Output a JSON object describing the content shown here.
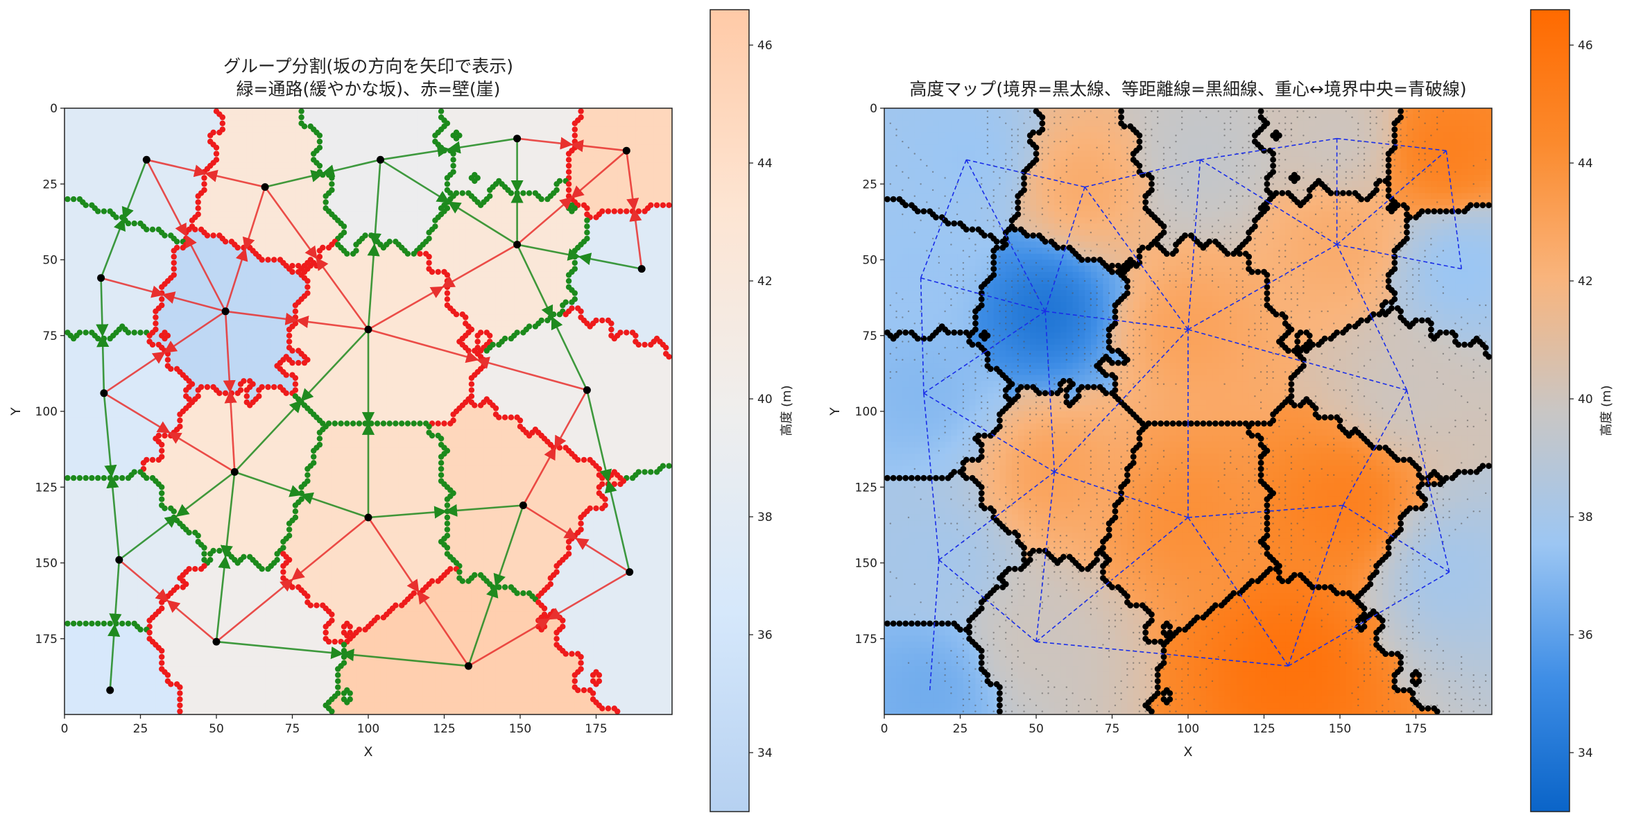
{
  "chart_data": [
    {
      "type": "heatmap",
      "title_line1": "グループ分割(坂の方向を矢印で表示)",
      "title_line2": "緑=通路(緩やかな坂)、赤=壁(崖)",
      "xlabel": "X",
      "ylabel": "Y",
      "xlim": [
        0,
        200
      ],
      "ylim": [
        200,
        0
      ],
      "xticks": [
        0,
        25,
        50,
        75,
        100,
        125,
        150,
        175
      ],
      "yticks": [
        0,
        25,
        50,
        75,
        100,
        125,
        150,
        175
      ],
      "colorbar": {
        "label": "高度 (m)",
        "range": [
          33,
          46.6
        ],
        "ticks": [
          34,
          36,
          38,
          40,
          42,
          44,
          46
        ],
        "colors": [
          "#b6d1f1",
          "#d6e8fb",
          "#efeeed",
          "#fde5d3",
          "#ffcaa7"
        ]
      },
      "regions": [
        {
          "centroid": [
            27,
            17
          ],
          "elevation": 37.5
        },
        {
          "centroid": [
            66,
            26
          ],
          "elevation": 42.5
        },
        {
          "centroid": [
            104,
            17
          ],
          "elevation": 39.5
        },
        {
          "centroid": [
            149,
            10
          ],
          "elevation": 40.0
        },
        {
          "centroid": [
            185,
            14
          ],
          "elevation": 45.0
        },
        {
          "centroid": [
            149,
            45
          ],
          "elevation": 42.5
        },
        {
          "centroid": [
            12,
            56
          ],
          "elevation": 37.5
        },
        {
          "centroid": [
            190,
            53
          ],
          "elevation": 37.5
        },
        {
          "centroid": [
            53,
            67
          ],
          "elevation": 34.0
        },
        {
          "centroid": [
            100,
            73
          ],
          "elevation": 43.0
        },
        {
          "centroid": [
            13,
            94
          ],
          "elevation": 37.0
        },
        {
          "centroid": [
            172,
            93
          ],
          "elevation": 40.0
        },
        {
          "centroid": [
            56,
            120
          ],
          "elevation": 43.0
        },
        {
          "centroid": [
            18,
            149
          ],
          "elevation": 38.0
        },
        {
          "centroid": [
            50,
            176
          ],
          "elevation": 40.0
        },
        {
          "centroid": [
            100,
            135
          ],
          "elevation": 44.0
        },
        {
          "centroid": [
            151,
            131
          ],
          "elevation": 45.0
        },
        {
          "centroid": [
            186,
            153
          ],
          "elevation": 38.0
        },
        {
          "centroid": [
            133,
            184
          ],
          "elevation": 46.0
        },
        {
          "centroid": [
            15,
            192
          ],
          "elevation": 36.5
        }
      ],
      "passages": [
        [
          0,
          6
        ],
        [
          1,
          2
        ],
        [
          2,
          3
        ],
        [
          2,
          5
        ],
        [
          3,
          5
        ],
        [
          5,
          7
        ],
        [
          5,
          11
        ],
        [
          6,
          10
        ],
        [
          9,
          12
        ],
        [
          9,
          15
        ],
        [
          10,
          13
        ],
        [
          11,
          17
        ],
        [
          12,
          14
        ],
        [
          12,
          15
        ],
        [
          13,
          19
        ],
        [
          14,
          18
        ],
        [
          15,
          16
        ],
        [
          16,
          18
        ],
        [
          2,
          9
        ],
        [
          12,
          13
        ]
      ],
      "walls": [
        [
          0,
          1
        ],
        [
          0,
          8
        ],
        [
          1,
          8
        ],
        [
          1,
          9
        ],
        [
          3,
          4
        ],
        [
          4,
          5
        ],
        [
          5,
          9
        ],
        [
          6,
          8
        ],
        [
          8,
          9
        ],
        [
          8,
          10
        ],
        [
          8,
          12
        ],
        [
          9,
          11
        ],
        [
          11,
          16
        ],
        [
          12,
          10
        ],
        [
          13,
          14
        ],
        [
          14,
          15
        ],
        [
          15,
          18
        ],
        [
          16,
          17
        ],
        [
          17,
          18
        ],
        [
          4,
          7
        ]
      ]
    },
    {
      "type": "heatmap",
      "title": "高度マップ(境界=黒太線、等距離線=黒細線、重心↔境界中央=青破線)",
      "xlabel": "X",
      "ylabel": "Y",
      "xlim": [
        0,
        200
      ],
      "ylim": [
        200,
        0
      ],
      "xticks": [
        0,
        25,
        50,
        75,
        100,
        125,
        150,
        175
      ],
      "yticks": [
        0,
        25,
        50,
        75,
        100,
        125,
        150,
        175
      ],
      "colorbar": {
        "label": "高度 (m)",
        "range": [
          33,
          46.6
        ],
        "ticks": [
          34,
          36,
          38,
          40,
          42,
          44,
          46
        ],
        "colors": [
          "#0a64c8",
          "#3f8ee6",
          "#9cc6f3",
          "#c9c6c4",
          "#f9b47c",
          "#fb8a2d",
          "#ff6a00"
        ]
      }
    }
  ]
}
